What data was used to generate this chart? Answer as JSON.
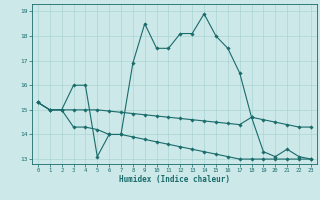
{
  "xlabel": "Humidex (Indice chaleur)",
  "bg_color": "#cce8e8",
  "line_color": "#1a6b6b",
  "grid_color": "#aad4d4",
  "xlim": [
    -0.5,
    23.5
  ],
  "ylim": [
    12.8,
    19.3
  ],
  "yticks": [
    13,
    14,
    15,
    16,
    17,
    18,
    19
  ],
  "xticks": [
    0,
    1,
    2,
    3,
    4,
    5,
    6,
    7,
    8,
    9,
    10,
    11,
    12,
    13,
    14,
    15,
    16,
    17,
    18,
    19,
    20,
    21,
    22,
    23
  ],
  "series1_x": [
    0,
    1,
    2,
    3,
    4,
    5,
    6,
    7,
    8,
    9,
    10,
    11,
    12,
    13,
    14,
    15,
    16,
    17,
    18,
    19,
    20,
    21,
    22,
    23
  ],
  "series1_y": [
    15.3,
    15.0,
    15.0,
    16.0,
    16.0,
    13.1,
    14.0,
    14.0,
    16.9,
    18.5,
    17.5,
    17.5,
    18.1,
    18.1,
    18.9,
    18.0,
    17.5,
    16.5,
    14.7,
    13.3,
    13.1,
    13.4,
    13.1,
    13.0
  ],
  "series2_x": [
    0,
    1,
    2,
    3,
    4,
    5,
    6,
    7,
    8,
    9,
    10,
    11,
    12,
    13,
    14,
    15,
    16,
    17,
    18,
    19,
    20,
    21,
    22,
    23
  ],
  "series2_y": [
    15.3,
    15.0,
    15.0,
    15.0,
    15.0,
    15.0,
    14.95,
    14.9,
    14.85,
    14.8,
    14.75,
    14.7,
    14.65,
    14.6,
    14.55,
    14.5,
    14.45,
    14.4,
    14.7,
    14.6,
    14.5,
    14.4,
    14.3,
    14.3
  ],
  "series3_x": [
    0,
    1,
    2,
    3,
    4,
    5,
    6,
    7,
    8,
    9,
    10,
    11,
    12,
    13,
    14,
    15,
    16,
    17,
    18,
    19,
    20,
    21,
    22,
    23
  ],
  "series3_y": [
    15.3,
    15.0,
    15.0,
    14.3,
    14.3,
    14.2,
    14.0,
    14.0,
    13.9,
    13.8,
    13.7,
    13.6,
    13.5,
    13.4,
    13.3,
    13.2,
    13.1,
    13.0,
    13.0,
    13.0,
    13.0,
    13.0,
    13.0,
    13.0
  ]
}
